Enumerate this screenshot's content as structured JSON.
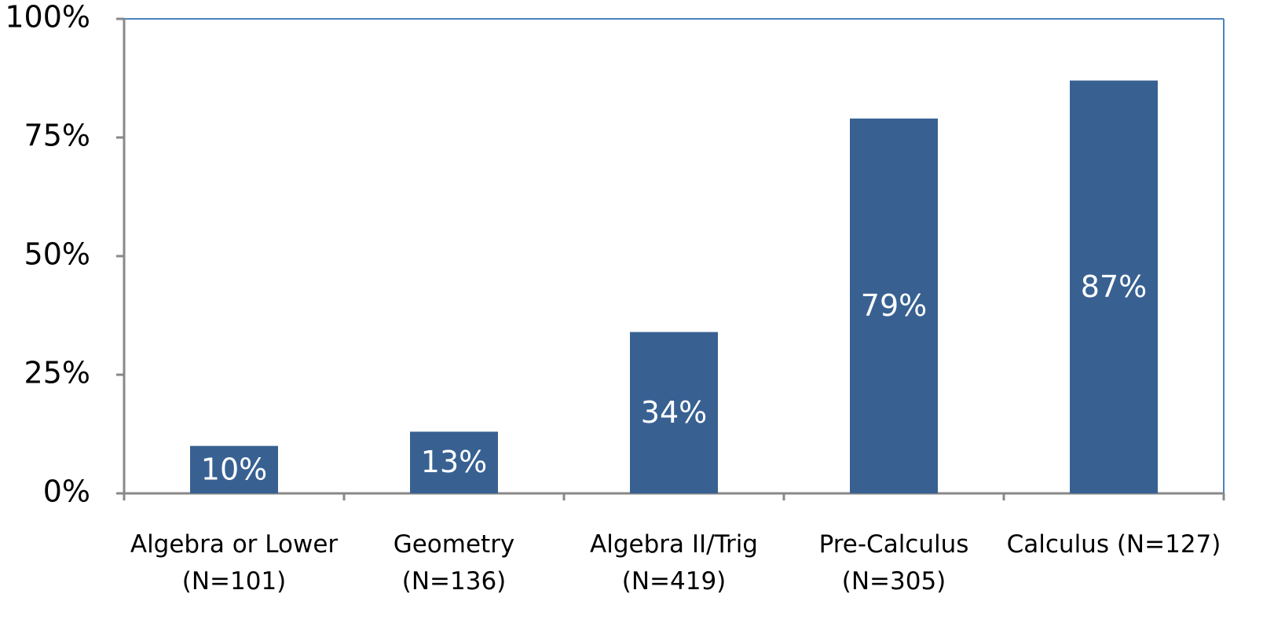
{
  "chart_data": {
    "type": "bar",
    "categories": [
      "Algebra or Lower\n(N=101)",
      "Geometry\n(N=136)",
      "Algebra II/Trig\n(N=419)",
      "Pre-Calculus\n(N=305)",
      "Calculus (N=127)"
    ],
    "values": [
      10,
      13,
      34,
      79,
      87
    ],
    "value_labels": [
      "10%",
      "13%",
      "34%",
      "79%",
      "87%"
    ],
    "color": "#386192",
    "ylim": [
      0,
      100
    ],
    "yticks": [
      {
        "value": 0,
        "label": "0%"
      },
      {
        "value": 25,
        "label": "25%"
      },
      {
        "value": 50,
        "label": "50%"
      },
      {
        "value": 75,
        "label": "75%"
      },
      {
        "value": 100,
        "label": "100%"
      }
    ],
    "grid": false
  }
}
